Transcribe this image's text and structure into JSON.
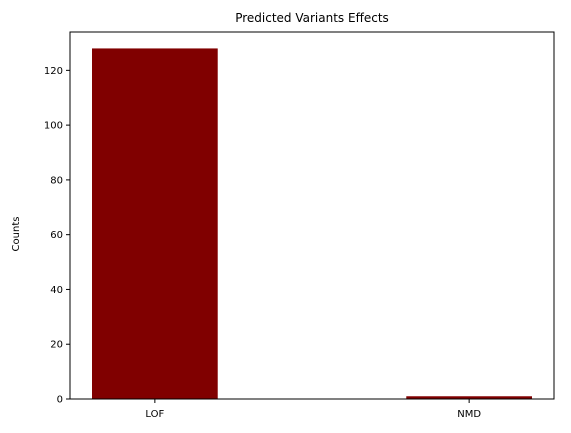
{
  "chart_data": {
    "type": "bar",
    "title": "Predicted Variants Effects",
    "xlabel": "",
    "ylabel": "Counts",
    "categories": [
      "LOF",
      "NMD"
    ],
    "values": [
      128,
      1
    ],
    "ylim": [
      0,
      134
    ],
    "yticks": [
      0,
      20,
      40,
      60,
      80,
      100,
      120
    ],
    "grid": false,
    "legend": null
  },
  "colors": {
    "bar": "#800000",
    "axis": "#000000",
    "background": "#ffffff"
  }
}
